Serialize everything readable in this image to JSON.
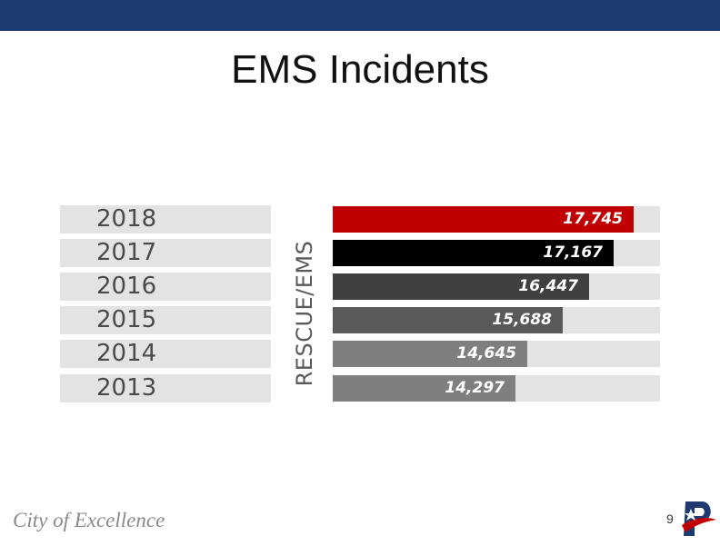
{
  "slide": {
    "title": "EMS Incidents",
    "footer_text": "City of Excellence",
    "page_number": "9"
  },
  "chart_data": {
    "type": "bar",
    "orientation": "horizontal",
    "title": "",
    "category_axis_label": "RESCUE/EMS",
    "categories": [
      "2018",
      "2017",
      "2016",
      "2015",
      "2014",
      "2013"
    ],
    "values": [
      17745,
      17167,
      16447,
      15688,
      14645,
      14297
    ],
    "value_labels": [
      "17,745",
      "17,167",
      "16,447",
      "15,688",
      "14,645",
      "14,297"
    ],
    "xlim": [
      9000,
      18500
    ],
    "bar_colors": [
      "#c00000",
      "#000000",
      "#404040",
      "#595959",
      "#7f7f7f",
      "#7f7f7f"
    ],
    "grid": false
  }
}
